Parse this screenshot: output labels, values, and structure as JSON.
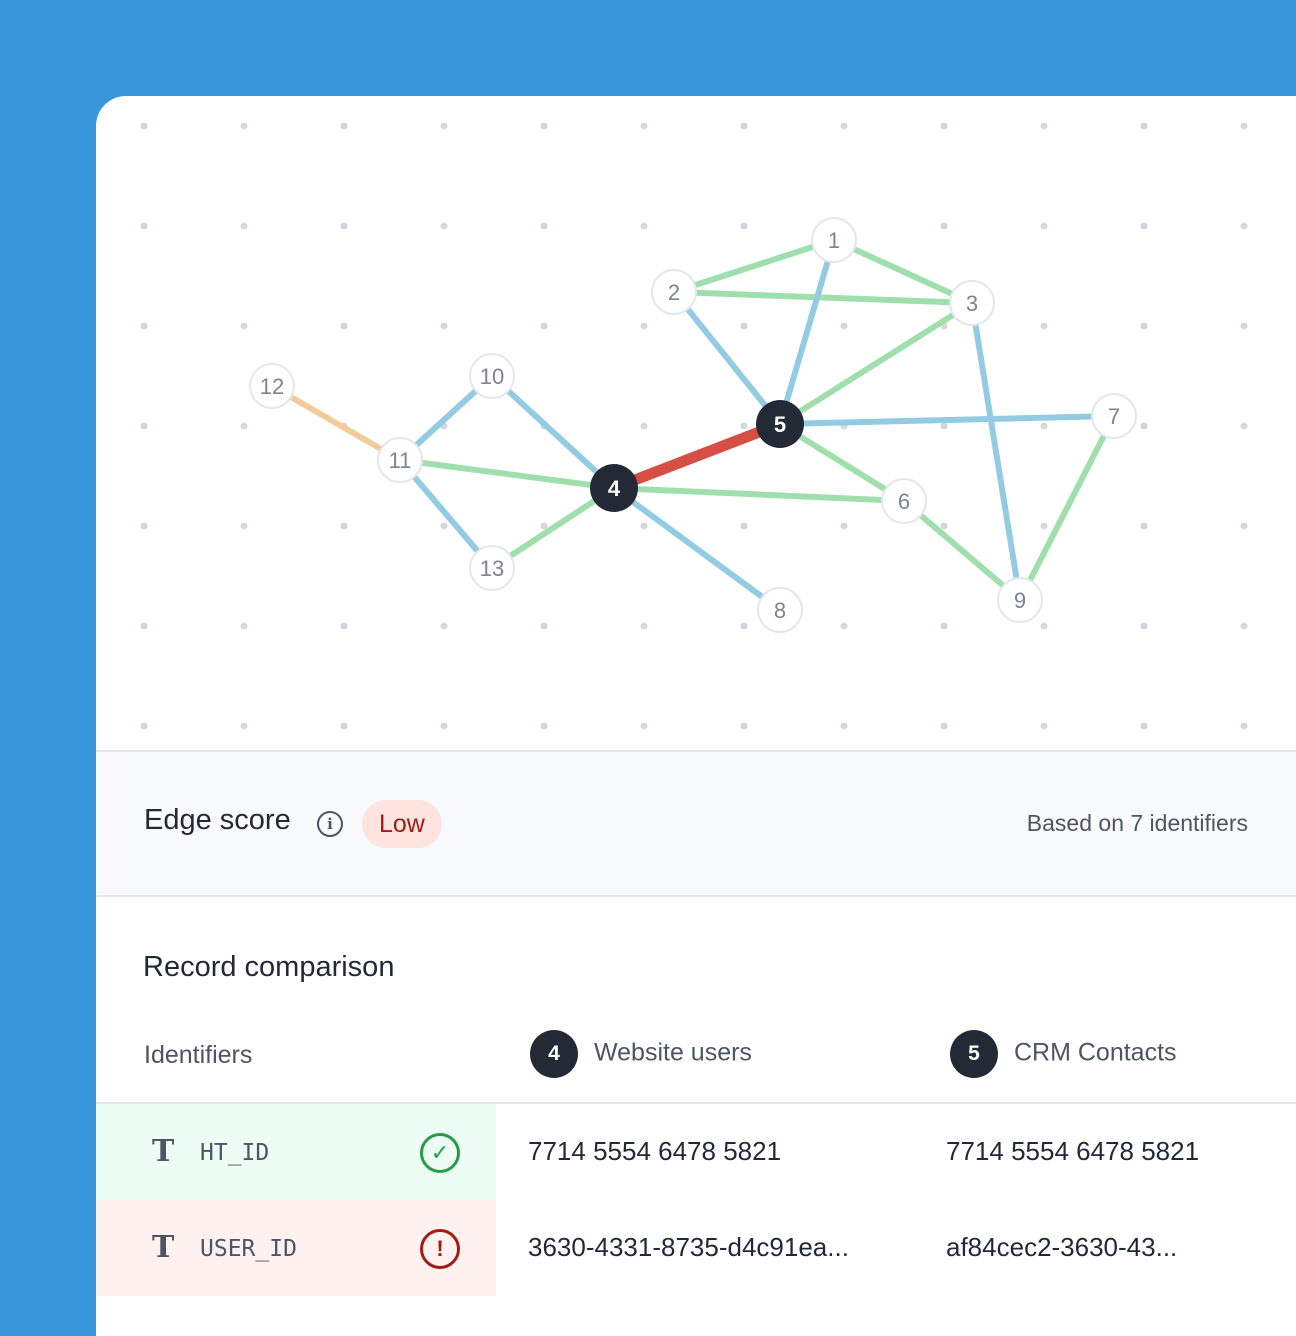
{
  "colors": {
    "background": "#3897db",
    "match": "#9fdfad",
    "link": "#93cbe3",
    "weak": "#f3cb9a",
    "selected": "#d64f45",
    "node_dark": "#232a35"
  },
  "graph": {
    "nodes": [
      {
        "id": "1",
        "selected": false
      },
      {
        "id": "2",
        "selected": false
      },
      {
        "id": "3",
        "selected": false
      },
      {
        "id": "4",
        "selected": true
      },
      {
        "id": "5",
        "selected": true
      },
      {
        "id": "6",
        "selected": false
      },
      {
        "id": "7",
        "selected": false
      },
      {
        "id": "8",
        "selected": false
      },
      {
        "id": "9",
        "selected": false
      },
      {
        "id": "10",
        "selected": false
      },
      {
        "id": "11",
        "selected": false
      },
      {
        "id": "12",
        "selected": false
      },
      {
        "id": "13",
        "selected": false
      }
    ],
    "edges": [
      {
        "from": "2",
        "to": "1",
        "type": "match"
      },
      {
        "from": "1",
        "to": "3",
        "type": "match"
      },
      {
        "from": "2",
        "to": "3",
        "type": "match"
      },
      {
        "from": "5",
        "to": "3",
        "type": "match"
      },
      {
        "from": "5",
        "to": "6",
        "type": "match"
      },
      {
        "from": "11",
        "to": "4",
        "type": "match"
      },
      {
        "from": "4",
        "to": "6",
        "type": "match"
      },
      {
        "from": "13",
        "to": "4",
        "type": "match"
      },
      {
        "from": "6",
        "to": "9",
        "type": "match"
      },
      {
        "from": "9",
        "to": "7",
        "type": "match"
      },
      {
        "from": "2",
        "to": "5",
        "type": "link"
      },
      {
        "from": "1",
        "to": "5",
        "type": "link"
      },
      {
        "from": "5",
        "to": "7",
        "type": "link"
      },
      {
        "from": "3",
        "to": "9",
        "type": "link"
      },
      {
        "from": "10",
        "to": "11",
        "type": "link"
      },
      {
        "from": "11",
        "to": "13",
        "type": "link"
      },
      {
        "from": "10",
        "to": "4",
        "type": "link"
      },
      {
        "from": "4",
        "to": "8",
        "type": "link"
      },
      {
        "from": "12",
        "to": "11",
        "type": "weak"
      },
      {
        "from": "4",
        "to": "5",
        "type": "selected"
      }
    ]
  },
  "edge_score": {
    "title": "Edge score",
    "info_icon": "info-icon",
    "level": "Low",
    "based_on": "Based on 7 identifiers"
  },
  "comparison": {
    "title": "Record comparison",
    "headers": {
      "identifiers": "Identifiers",
      "a_num": "4",
      "a_label": "Website users",
      "b_num": "5",
      "b_label": "CRM Contacts"
    },
    "rows": [
      {
        "type_icon": "T",
        "name": "HT_ID",
        "status": "match",
        "status_icon": "check-circle-icon",
        "a": "7714 5554 6478 5821",
        "b": "7714 5554 6478 5821"
      },
      {
        "type_icon": "T",
        "name": "USER_ID",
        "status": "mismatch",
        "status_icon": "alert-circle-icon",
        "a": "3630-4331-8735-d4c91ea...",
        "b": "af84cec2-3630-43..."
      }
    ]
  }
}
